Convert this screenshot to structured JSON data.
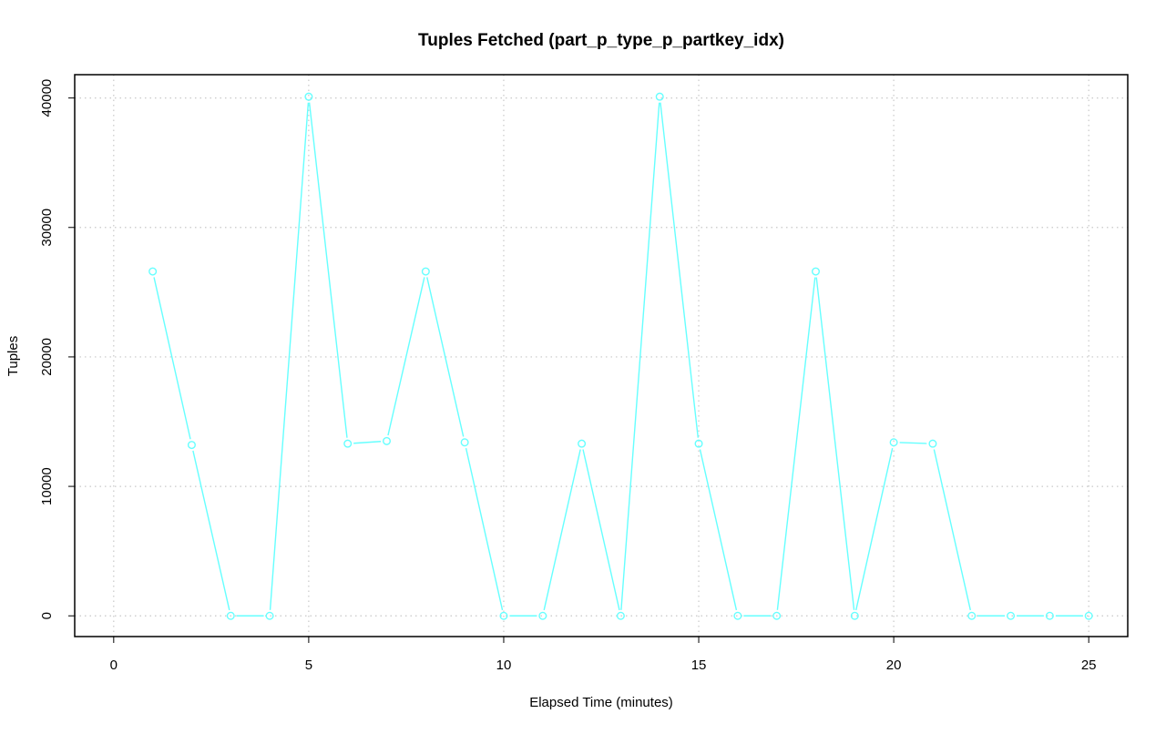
{
  "chart_data": {
    "type": "line",
    "title": "Tuples Fetched (part_p_type_p_partkey_idx)",
    "xlabel": "Elapsed Time (minutes)",
    "ylabel": "Tuples",
    "xlim": [
      -1,
      26
    ],
    "ylim": [
      -1600,
      41800
    ],
    "x_ticks": [
      0,
      5,
      10,
      15,
      20,
      25
    ],
    "y_ticks": [
      0,
      10000,
      20000,
      30000,
      40000
    ],
    "x_tick_labels": [
      "0",
      "5",
      "10",
      "15",
      "20",
      "25"
    ],
    "y_tick_labels": [
      "0",
      "10000",
      "20000",
      "30000",
      "40000"
    ],
    "grid": true,
    "series": [
      {
        "color": "#66ffff",
        "marker": "circle",
        "x": [
          1,
          2,
          3,
          4,
          5,
          6,
          7,
          8,
          9,
          10,
          11,
          12,
          13,
          14,
          15,
          16,
          17,
          18,
          19,
          20,
          21,
          22,
          23,
          24,
          25
        ],
        "y": [
          26600,
          13200,
          0,
          0,
          40100,
          13300,
          13500,
          26600,
          13400,
          0,
          0,
          13300,
          0,
          40100,
          13300,
          0,
          0,
          26600,
          0,
          13400,
          13300,
          0,
          0,
          0,
          0
        ]
      }
    ]
  }
}
